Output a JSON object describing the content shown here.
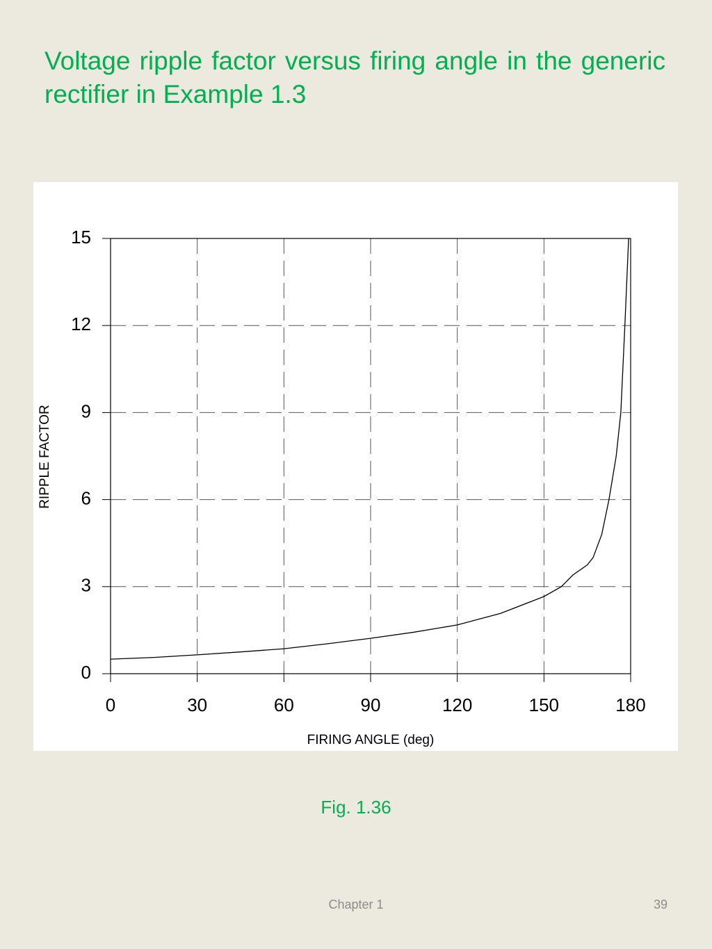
{
  "slide_title": "Voltage ripple factor versus firing angle in the generic rectifier in Example 1.3",
  "chart_data": {
    "type": "line",
    "x_label": "FIRING ANGLE (deg)",
    "y_label": "RIPPLE FACTOR",
    "x": [
      0,
      15,
      30,
      45,
      60,
      75,
      90,
      105,
      120,
      135,
      150,
      156,
      160,
      165,
      167,
      170,
      172.5,
      175,
      176.6,
      178,
      179.3
    ],
    "values": [
      0.5,
      0.56,
      0.65,
      0.75,
      0.86,
      1.03,
      1.22,
      1.43,
      1.68,
      2.08,
      2.66,
      3,
      3.4,
      3.75,
      4,
      4.8,
      6,
      7.5,
      9,
      12,
      15
    ],
    "color": "#000000",
    "xlim": [
      0,
      180
    ],
    "xticks": [
      0,
      30,
      60,
      90,
      120,
      150,
      180
    ],
    "ylim": [
      0,
      15
    ],
    "yticks": [
      0,
      3,
      6,
      9,
      12,
      15
    ],
    "grid": true
  },
  "caption": "Fig. 1.36",
  "footer": "Chapter 1",
  "page_number": "39"
}
